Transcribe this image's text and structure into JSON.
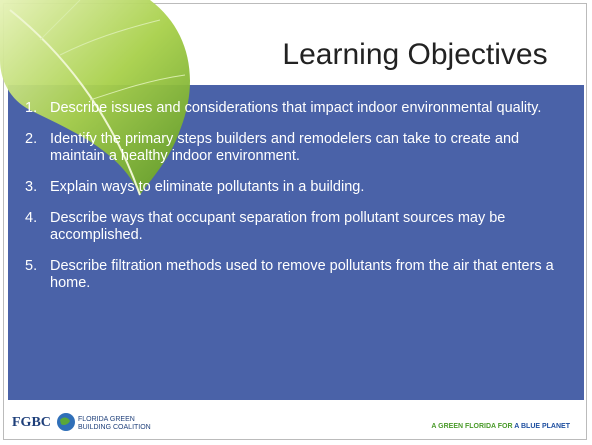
{
  "slide": {
    "title": "Learning Objectives",
    "objectives": [
      {
        "number": "1.",
        "text": "Describe issues and considerations that impact indoor environmental quality."
      },
      {
        "number": "2.",
        "text": "Identify the primary steps builders and remodelers can take to create and maintain a healthy indoor environment."
      },
      {
        "number": "3.",
        "text": "Explain ways to eliminate pollutants in a building."
      },
      {
        "number": "4.",
        "text": "Describe ways that occupant separation from pollutant sources may be accomplished."
      },
      {
        "number": "5.",
        "text": "Describe filtration methods used to remove pollutants from the air that enters a home."
      }
    ],
    "footer": {
      "logo": "FGBC",
      "org_line1": "FLORIDA GREEN",
      "org_line2": "BUILDING COALITION",
      "tagline_green": "A GREEN FLORIDA FOR",
      "tagline_blue": "A BLUE PLANET"
    }
  }
}
